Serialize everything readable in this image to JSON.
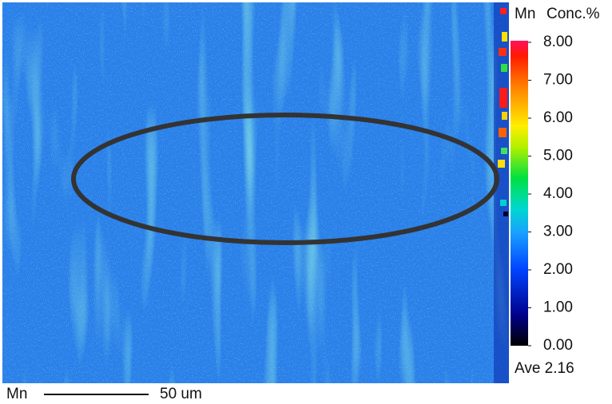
{
  "map": {
    "element": "Mn",
    "scale_bar": "50 um"
  },
  "colorbar": {
    "element": "Mn",
    "unit": "Conc.%",
    "range": [
      0,
      8
    ],
    "ticks": [
      {
        "value": 8,
        "label": "8.00"
      },
      {
        "value": 7,
        "label": "7.00"
      },
      {
        "value": 6,
        "label": "6.00"
      },
      {
        "value": 5,
        "label": "5.00"
      },
      {
        "value": 4,
        "label": "4.00"
      },
      {
        "value": 3,
        "label": "3.00"
      },
      {
        "value": 2,
        "label": "2.00"
      },
      {
        "value": 1,
        "label": "1.00"
      },
      {
        "value": 0,
        "label": "0.00"
      }
    ],
    "average": "Ave 2.16"
  }
}
